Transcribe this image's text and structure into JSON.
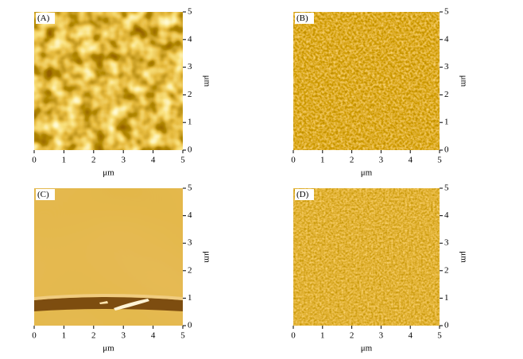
{
  "chart_data": [
    {
      "type": "image",
      "panel_label": "(A)",
      "xlabel": "μm",
      "ylabel": "μm",
      "xlim": [
        0,
        5
      ],
      "ylim": [
        0,
        5
      ],
      "xticks": [
        0,
        1,
        2,
        3,
        4,
        5
      ],
      "yticks": [
        0,
        1,
        2,
        3,
        4,
        5
      ]
    },
    {
      "type": "image",
      "panel_label": "(B)",
      "xlabel": "μm",
      "ylabel": "μm",
      "xlim": [
        0,
        5
      ],
      "ylim": [
        0,
        5
      ],
      "xticks": [
        0,
        1,
        2,
        3,
        4,
        5
      ],
      "yticks": [
        0,
        1,
        2,
        3,
        4,
        5
      ]
    },
    {
      "type": "image",
      "panel_label": "(C)",
      "xlabel": "μm",
      "ylabel": "μm",
      "xlim": [
        0,
        5
      ],
      "ylim": [
        0,
        5
      ],
      "xticks": [
        0,
        1,
        2,
        3,
        4,
        5
      ],
      "yticks": [
        0,
        1,
        2,
        3,
        4,
        5
      ]
    },
    {
      "type": "image",
      "panel_label": "(D)",
      "xlabel": "μm",
      "ylabel": "μm",
      "xlim": [
        0,
        5
      ],
      "ylim": [
        0,
        5
      ],
      "xticks": [
        0,
        1,
        2,
        3,
        4,
        5
      ],
      "yticks": [
        0,
        1,
        2,
        3,
        4,
        5
      ]
    }
  ]
}
